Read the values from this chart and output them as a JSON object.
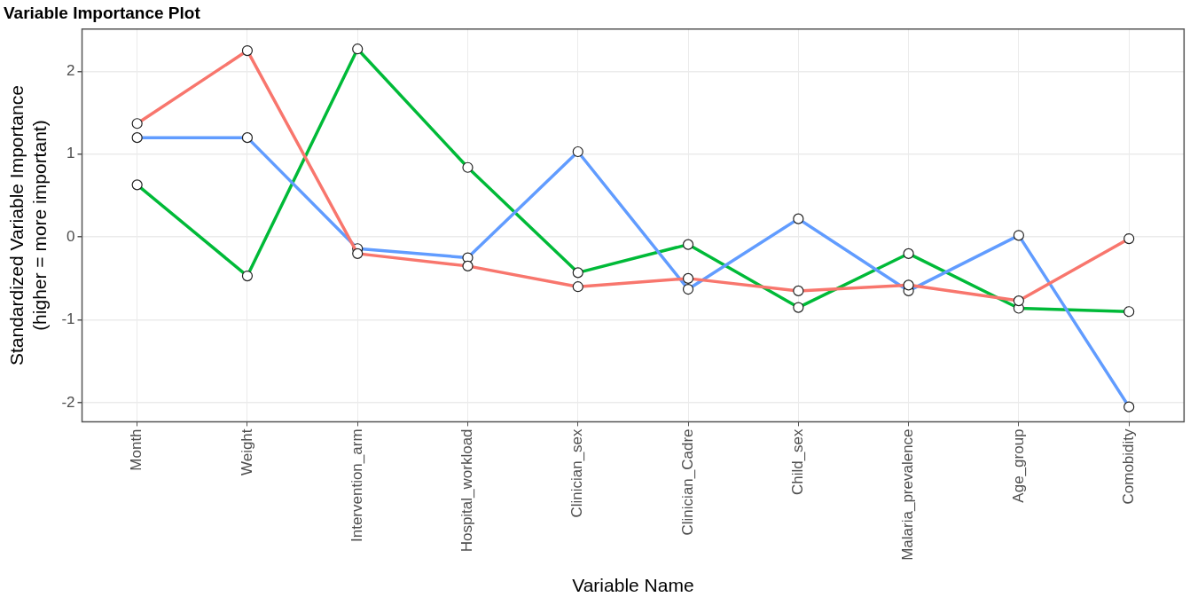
{
  "chart_data": {
    "type": "line",
    "title": "Variable Importance Plot",
    "xlabel": "Variable Name",
    "ylabel": "Standardized Variable Importance\n(higher = more important)",
    "categories": [
      "Month",
      "Weight",
      "Intervention_arm",
      "Hospital_workload",
      "Clinician_sex",
      "Clinician_Cadre",
      "Child_sex",
      "Malaria_prevalence",
      "Age_group",
      "Comobidity"
    ],
    "series": [
      {
        "color": "#f8766d",
        "values": [
          1.37,
          2.25,
          -0.2,
          -0.35,
          -0.6,
          -0.5,
          -0.65,
          -0.58,
          -0.77,
          -0.02
        ]
      },
      {
        "color": "#619cff",
        "values": [
          1.2,
          1.2,
          -0.14,
          -0.25,
          1.03,
          -0.63,
          0.22,
          -0.65,
          0.02,
          -2.05
        ]
      },
      {
        "color": "#00ba38",
        "values": [
          0.63,
          -0.47,
          2.27,
          0.84,
          -0.43,
          -0.09,
          -0.85,
          -0.2,
          -0.86,
          -0.9
        ]
      }
    ],
    "ylim": [
      -2.23,
      2.51
    ],
    "yticks": [
      -2,
      -1,
      0,
      1,
      2
    ],
    "grid": true,
    "legend": false,
    "marker": "circle",
    "line_style": "solid"
  }
}
